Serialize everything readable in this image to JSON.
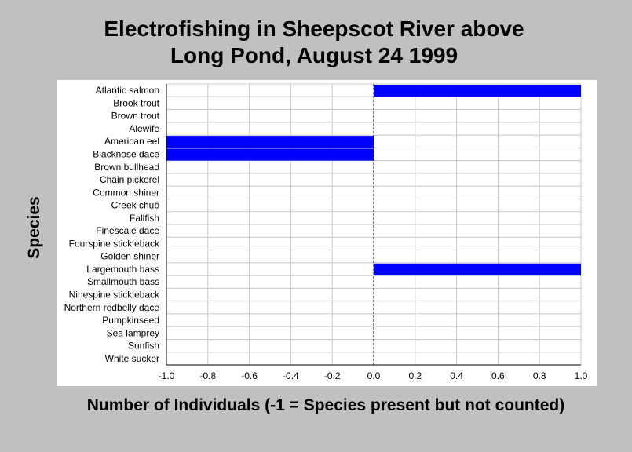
{
  "chart_data": {
    "type": "bar",
    "orientation": "horizontal",
    "title_lines": [
      "Electrofishing in Sheepscot River above",
      "Long Pond, August 24 1999"
    ],
    "xlabel": "Number of Individuals (-1 = Species present but not counted)",
    "ylabel": "Species",
    "xlim": [
      -1.0,
      1.0
    ],
    "xticks": [
      "-1.0",
      "-0.8",
      "-0.6",
      "-0.4",
      "-0.2",
      "0.0",
      "0.2",
      "0.4",
      "0.6",
      "0.8",
      "1.0"
    ],
    "grid": true,
    "categories": [
      "Atlantic salmon",
      "Brook trout",
      "Brown trout",
      "Alewife",
      "American eel",
      "Blacknose dace",
      "Brown bullhead",
      "Chain pickerel",
      "Common shiner",
      "Creek chub",
      "Fallfish",
      "Finescale dace",
      "Fourspine stickleback",
      "Golden shiner",
      "Largemouth bass",
      "Smallmouth bass",
      "Ninespine stickleback",
      "Northern redbelly dace",
      "Pumpkinseed",
      "Sea lamprey",
      "Sunfish",
      "White sucker"
    ],
    "values": [
      1,
      0,
      0,
      0,
      -1,
      -1,
      0,
      0,
      0,
      0,
      0,
      0,
      0,
      0,
      1,
      0,
      0,
      0,
      0,
      0,
      0,
      0
    ],
    "colors": {
      "bar": "#0000ff",
      "grid": "#c8c8c8",
      "background": "#c0c0c0",
      "plot": "#ffffff"
    }
  }
}
